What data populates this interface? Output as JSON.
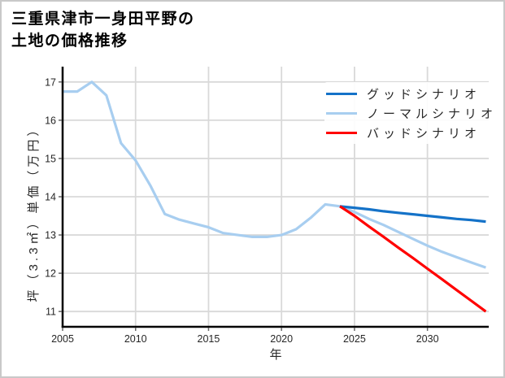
{
  "title": "三重県津市一身田平野の\n土地の価格推移",
  "colors": {
    "grid": "#d9d9d9",
    "spine": "#000000",
    "tick": "#666666",
    "tick_text": "#262626",
    "border": "#c9c9c9",
    "background": "#ffffff"
  },
  "chart_data": {
    "type": "line",
    "title": "三重県津市一身田平野の土地の価格推移",
    "xlabel": "年",
    "ylabel": "坪（3.3㎡）単価（万円）",
    "xlim": [
      2005,
      2034.2
    ],
    "ylim": [
      10.6,
      17.4
    ],
    "x_ticks": [
      2005,
      2010,
      2015,
      2020,
      2025,
      2030
    ],
    "y_ticks": [
      11,
      12,
      13,
      14,
      15,
      16,
      17
    ],
    "grid": true,
    "legend_position": "upper right",
    "series": [
      {
        "name": "グッドシナリオ",
        "color": "#1472c8",
        "z": 2,
        "x": [
          2024,
          2025,
          2026,
          2027,
          2028,
          2029,
          2030,
          2031,
          2032,
          2033,
          2034
        ],
        "y": [
          13.75,
          13.71,
          13.67,
          13.62,
          13.58,
          13.54,
          13.5,
          13.46,
          13.42,
          13.39,
          13.35
        ]
      },
      {
        "name": "ノーマルシナリオ",
        "color": "#a8cef0",
        "z": 1,
        "x": [
          2005,
          2006,
          2007,
          2008,
          2009,
          2010,
          2011,
          2012,
          2013,
          2014,
          2015,
          2016,
          2017,
          2018,
          2019,
          2020,
          2021,
          2022,
          2023,
          2024,
          2025,
          2026,
          2027,
          2028,
          2029,
          2030,
          2031,
          2032,
          2033,
          2034
        ],
        "y": [
          16.75,
          16.75,
          17.0,
          16.65,
          15.4,
          14.95,
          14.3,
          13.55,
          13.4,
          13.3,
          13.2,
          13.05,
          13.0,
          12.95,
          12.95,
          13.0,
          13.15,
          13.45,
          13.8,
          13.75,
          13.6,
          13.42,
          13.26,
          13.08,
          12.9,
          12.72,
          12.56,
          12.42,
          12.28,
          12.15
        ]
      },
      {
        "name": "バッドシナリオ",
        "color": "#ff0000",
        "z": 3,
        "x": [
          2024,
          2025,
          2026,
          2027,
          2028,
          2029,
          2030,
          2031,
          2032,
          2033,
          2034
        ],
        "y": [
          13.75,
          13.5,
          13.22,
          12.95,
          12.67,
          12.4,
          12.12,
          11.84,
          11.56,
          11.28,
          11.0
        ]
      }
    ]
  }
}
